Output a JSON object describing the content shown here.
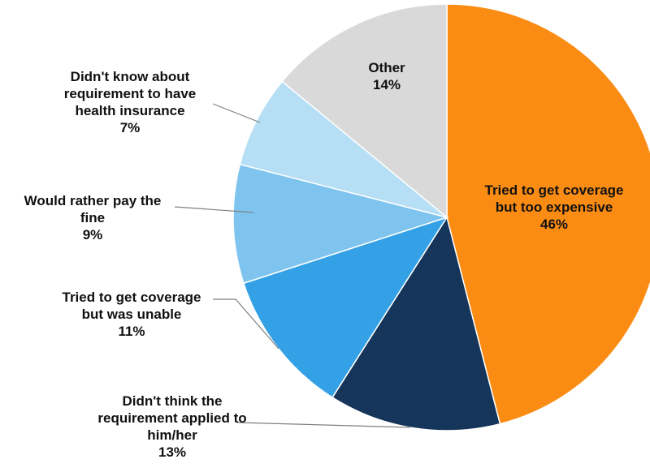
{
  "chart_data": {
    "type": "pie",
    "title": "",
    "start_angle_deg": 0,
    "direction": "clockwise",
    "legend": "none",
    "slices": [
      {
        "label_lines": [
          "Tried to get coverage",
          "but too expensive"
        ],
        "value": 46,
        "value_label": "46%",
        "color": "#fb8c13"
      },
      {
        "label_lines": [
          "Didn't think the",
          "requirement applied to",
          "him/her"
        ],
        "value": 13,
        "value_label": "13%",
        "color": "#15355a"
      },
      {
        "label_lines": [
          "Tried to get coverage",
          "but was unable"
        ],
        "value": 11,
        "value_label": "11%",
        "color": "#34a1e6"
      },
      {
        "label_lines": [
          "Would rather pay the",
          "fine"
        ],
        "value": 9,
        "value_label": "9%",
        "color": "#7ec4ef"
      },
      {
        "label_lines": [
          "Didn't know about",
          "requirement to have",
          "health insurance"
        ],
        "value": 7,
        "value_label": "7%",
        "color": "#b6dff6"
      },
      {
        "label_lines": [
          "Other"
        ],
        "value": 14,
        "value_label": "14%",
        "color": "#d9d9d9"
      }
    ]
  }
}
